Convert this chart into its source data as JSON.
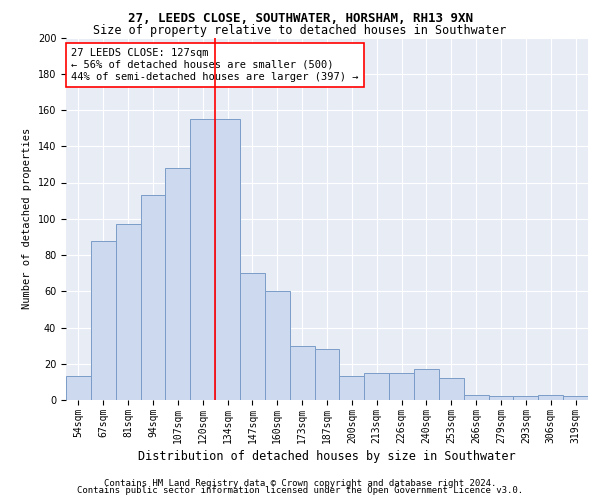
{
  "title1": "27, LEEDS CLOSE, SOUTHWATER, HORSHAM, RH13 9XN",
  "title2": "Size of property relative to detached houses in Southwater",
  "xlabel": "Distribution of detached houses by size in Southwater",
  "ylabel": "Number of detached properties",
  "categories": [
    "54sqm",
    "67sqm",
    "81sqm",
    "94sqm",
    "107sqm",
    "120sqm",
    "134sqm",
    "147sqm",
    "160sqm",
    "173sqm",
    "187sqm",
    "200sqm",
    "213sqm",
    "226sqm",
    "240sqm",
    "253sqm",
    "266sqm",
    "279sqm",
    "293sqm",
    "306sqm",
    "319sqm"
  ],
  "values": [
    13,
    88,
    97,
    113,
    128,
    155,
    155,
    70,
    60,
    30,
    28,
    13,
    15,
    15,
    17,
    12,
    3,
    2,
    2,
    3,
    2
  ],
  "bar_color": "#ccd9ef",
  "bar_edge_color": "#7a9cc8",
  "background_color": "#e8edf5",
  "vline_x_index": 5,
  "vline_color": "red",
  "annotation_text": "27 LEEDS CLOSE: 127sqm\n← 56% of detached houses are smaller (500)\n44% of semi-detached houses are larger (397) →",
  "annotation_box_color": "white",
  "annotation_box_edge": "red",
  "ylim": [
    0,
    200
  ],
  "yticks": [
    0,
    20,
    40,
    60,
    80,
    100,
    120,
    140,
    160,
    180,
    200
  ],
  "footer1": "Contains HM Land Registry data © Crown copyright and database right 2024.",
  "footer2": "Contains public sector information licensed under the Open Government Licence v3.0.",
  "title1_fontsize": 9,
  "title2_fontsize": 8.5,
  "xlabel_fontsize": 8.5,
  "ylabel_fontsize": 7.5,
  "tick_fontsize": 7,
  "annotation_fontsize": 7.5,
  "footer_fontsize": 6.5
}
